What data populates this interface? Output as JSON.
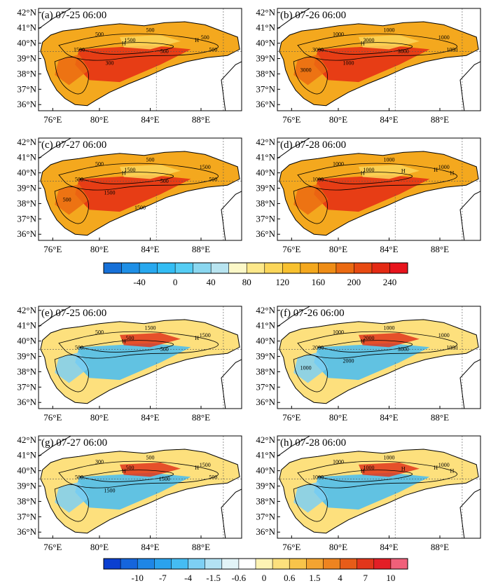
{
  "figure": {
    "panels": [
      {
        "label": "(a) 07-25 06:00",
        "fill": "temp",
        "h_marks": 2,
        "contour_labels": [
          "500",
          "500",
          "500",
          "1500",
          "1500",
          "500",
          "500",
          "300"
        ]
      },
      {
        "label": "(b) 07-26 06:00",
        "fill": "temp",
        "h_marks": 1,
        "contour_labels": [
          "1000",
          "1000",
          "1000",
          "3000",
          "3000",
          "3000",
          "1000",
          "1000",
          "3000"
        ]
      },
      {
        "label": "(c) 07-27 06:00",
        "fill": "temp",
        "h_marks": 1,
        "contour_labels": [
          "500",
          "500",
          "1500",
          "1500",
          "500",
          "500",
          "500",
          "1500",
          "500",
          "1500"
        ]
      },
      {
        "label": "(d) 07-28 06:00",
        "fill": "temp",
        "h_marks": 4,
        "contour_labels": [
          "1000",
          "1000",
          "1000",
          "1000",
          "1000"
        ]
      },
      {
        "label": "(e) 07-25 06:00",
        "fill": "anom",
        "h_marks": 2,
        "contour_labels": [
          "500",
          "1500",
          "1500",
          "500",
          "500",
          "500"
        ]
      },
      {
        "label": "(f) 07-26 06:00",
        "fill": "anom",
        "h_marks": 1,
        "contour_labels": [
          "1000",
          "1000",
          "1000",
          "2000",
          "2000",
          "3000",
          "1000",
          "2000",
          "1000"
        ]
      },
      {
        "label": "(g) 07-27 06:00",
        "fill": "anom",
        "h_marks": 2,
        "contour_labels": [
          "300",
          "500",
          "1500",
          "500",
          "500",
          "1500",
          "500",
          "1500"
        ]
      },
      {
        "label": "(h) 07-28 06:00",
        "fill": "anom",
        "h_marks": 4,
        "contour_labels": [
          "1000",
          "1000",
          "1000",
          "1000",
          "1000"
        ]
      }
    ],
    "x_ticks": [
      "76°E",
      "80°E",
      "84°E",
      "88°E"
    ],
    "y_ticks": [
      "42°N",
      "41°N",
      "40°N",
      "39°N",
      "38°N",
      "37°N",
      "36°N"
    ],
    "h_label": "H"
  },
  "chart_data": {
    "type": "heatmap",
    "colorbars": [
      {
        "ticks": [
          "-40",
          "0",
          "40",
          "80",
          "120",
          "160",
          "200",
          "240"
        ],
        "colors": [
          "#1670d8",
          "#1e8fe6",
          "#27a8ef",
          "#33bdf4",
          "#55cdf4",
          "#8ad7f0",
          "#b8e4f0",
          "#fcf8c8",
          "#fde88a",
          "#fbd65a",
          "#f8c12f",
          "#f4a81e",
          "#ef8d16",
          "#eb6a12",
          "#e84a12",
          "#e42a14",
          "#e8141c"
        ]
      },
      {
        "ticks": [
          "-10",
          "-7",
          "-4",
          "-1.5",
          "-0.6",
          "0",
          "0.6",
          "1.5",
          "4",
          "7",
          "10"
        ],
        "colors": [
          "#0b3fd0",
          "#1565dc",
          "#1e86e6",
          "#2aa2ed",
          "#45bcf3",
          "#7dcff3",
          "#b3e2f3",
          "#e2f4f7",
          "#ffffff",
          "#fdf3b4",
          "#fde07d",
          "#f8c44a",
          "#f3a431",
          "#ee8420",
          "#e75c18",
          "#e2361b",
          "#e31e26",
          "#f0607a"
        ]
      }
    ]
  }
}
